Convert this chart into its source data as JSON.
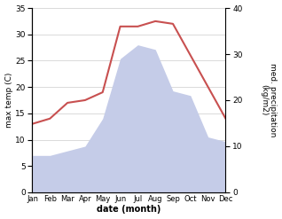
{
  "months": [
    "Jan",
    "Feb",
    "Mar",
    "Apr",
    "May",
    "Jun",
    "Jul",
    "Aug",
    "Sep",
    "Oct",
    "Nov",
    "Dec"
  ],
  "max_temp": [
    13.0,
    14.0,
    17.0,
    17.5,
    19.0,
    31.5,
    31.5,
    32.5,
    32.0,
    26.0,
    20.0,
    14.0
  ],
  "precipitation": [
    8.0,
    8.0,
    9.0,
    10.0,
    16.0,
    29.0,
    32.0,
    31.0,
    22.0,
    21.0,
    12.0,
    11.0
  ],
  "temp_color": "#c85050",
  "precip_fill_color": "#c5cce8",
  "temp_ylim": [
    0,
    35
  ],
  "precip_ylim": [
    0,
    40
  ],
  "xlabel": "date (month)",
  "ylabel_left": "max temp (C)",
  "ylabel_right": "med. precipitation\n(kg/m2)",
  "bg_color": "#ffffff",
  "grid_color": "#cccccc"
}
